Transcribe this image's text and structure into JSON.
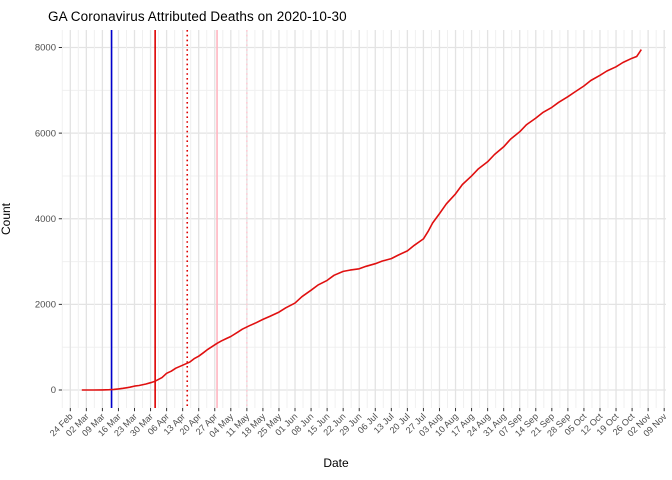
{
  "chart_data": {
    "type": "line",
    "title": "GA Coronavirus Attributed Deaths on 2020-10-30",
    "xlabel": "Date",
    "ylabel": "Count",
    "grid": true,
    "legend": "none",
    "ylim": [
      0,
      8000
    ],
    "y_ticks": [
      0,
      2000,
      4000,
      6000,
      8000
    ],
    "y_minor_step": 1000,
    "x_ticks": [
      {
        "date": "2020-02-24",
        "label": "24 Feb"
      },
      {
        "date": "2020-03-02",
        "label": "02 Mar"
      },
      {
        "date": "2020-03-09",
        "label": "09 Mar"
      },
      {
        "date": "2020-03-16",
        "label": "16 Mar"
      },
      {
        "date": "2020-03-23",
        "label": "23 Mar"
      },
      {
        "date": "2020-03-30",
        "label": "30 Mar"
      },
      {
        "date": "2020-04-06",
        "label": "06 Apr"
      },
      {
        "date": "2020-04-13",
        "label": "13 Apr"
      },
      {
        "date": "2020-04-20",
        "label": "20 Apr"
      },
      {
        "date": "2020-04-27",
        "label": "27 Apr"
      },
      {
        "date": "2020-05-04",
        "label": "04 May"
      },
      {
        "date": "2020-05-11",
        "label": "11 May"
      },
      {
        "date": "2020-05-18",
        "label": "18 May"
      },
      {
        "date": "2020-05-25",
        "label": "25 May"
      },
      {
        "date": "2020-06-01",
        "label": "01 Jun"
      },
      {
        "date": "2020-06-08",
        "label": "08 Jun"
      },
      {
        "date": "2020-06-15",
        "label": "15 Jun"
      },
      {
        "date": "2020-06-22",
        "label": "22 Jun"
      },
      {
        "date": "2020-06-29",
        "label": "29 Jun"
      },
      {
        "date": "2020-07-06",
        "label": "06 Jul"
      },
      {
        "date": "2020-07-13",
        "label": "13 Jul"
      },
      {
        "date": "2020-07-20",
        "label": "20 Jul"
      },
      {
        "date": "2020-07-27",
        "label": "27 Jul"
      },
      {
        "date": "2020-08-03",
        "label": "03 Aug"
      },
      {
        "date": "2020-08-10",
        "label": "10 Aug"
      },
      {
        "date": "2020-08-17",
        "label": "17 Aug"
      },
      {
        "date": "2020-08-24",
        "label": "24 Aug"
      },
      {
        "date": "2020-08-31",
        "label": "31 Aug"
      },
      {
        "date": "2020-09-07",
        "label": "07 Sep"
      },
      {
        "date": "2020-09-14",
        "label": "14 Sep"
      },
      {
        "date": "2020-09-21",
        "label": "21 Sep"
      },
      {
        "date": "2020-09-28",
        "label": "28 Sep"
      },
      {
        "date": "2020-10-05",
        "label": "05 Oct"
      },
      {
        "date": "2020-10-12",
        "label": "12 Oct"
      },
      {
        "date": "2020-10-19",
        "label": "19 Oct"
      },
      {
        "date": "2020-10-26",
        "label": "26 Oct"
      },
      {
        "date": "2020-11-02",
        "label": "02 Nov"
      },
      {
        "date": "2020-11-09",
        "label": "09 Nov"
      }
    ],
    "reference_lines": [
      {
        "name": "blue-solid-vline",
        "date": "2020-03-13",
        "style": "solid",
        "color": "#0000cc"
      },
      {
        "name": "red-solid-vline",
        "date": "2020-04-01",
        "style": "solid",
        "color": "#dd0000"
      },
      {
        "name": "red-dotted-vline",
        "date": "2020-04-15",
        "style": "dotted",
        "color": "#dd0000"
      },
      {
        "name": "pink-solid-vline",
        "date": "2020-04-28",
        "style": "solid",
        "color": "#ffb6c1"
      },
      {
        "name": "pink-dotted-vline",
        "date": "2020-05-11",
        "style": "dotted",
        "color": "#ffccd6"
      }
    ],
    "series": [
      {
        "name": "cumulative-deaths",
        "color": "#e01010",
        "points": [
          [
            "2020-02-29",
            0
          ],
          [
            "2020-03-05",
            0
          ],
          [
            "2020-03-09",
            3
          ],
          [
            "2020-03-12",
            8
          ],
          [
            "2020-03-14",
            15
          ],
          [
            "2020-03-16",
            26
          ],
          [
            "2020-03-18",
            40
          ],
          [
            "2020-03-21",
            65
          ],
          [
            "2020-03-23",
            90
          ],
          [
            "2020-03-25",
            105
          ],
          [
            "2020-03-28",
            140
          ],
          [
            "2020-03-30",
            170
          ],
          [
            "2020-04-01",
            205
          ],
          [
            "2020-04-04",
            290
          ],
          [
            "2020-04-06",
            390
          ],
          [
            "2020-04-08",
            440
          ],
          [
            "2020-04-10",
            510
          ],
          [
            "2020-04-13",
            580
          ],
          [
            "2020-04-16",
            650
          ],
          [
            "2020-04-18",
            730
          ],
          [
            "2020-04-20",
            790
          ],
          [
            "2020-04-22",
            870
          ],
          [
            "2020-04-24",
            950
          ],
          [
            "2020-04-26",
            1020
          ],
          [
            "2020-04-28",
            1090
          ],
          [
            "2020-04-30",
            1150
          ],
          [
            "2020-05-02",
            1200
          ],
          [
            "2020-05-04",
            1250
          ],
          [
            "2020-05-07",
            1350
          ],
          [
            "2020-05-09",
            1420
          ],
          [
            "2020-05-12",
            1500
          ],
          [
            "2020-05-15",
            1570
          ],
          [
            "2020-05-18",
            1650
          ],
          [
            "2020-05-21",
            1720
          ],
          [
            "2020-05-25",
            1820
          ],
          [
            "2020-05-28",
            1920
          ],
          [
            "2020-06-01",
            2030
          ],
          [
            "2020-06-04",
            2180
          ],
          [
            "2020-06-08",
            2330
          ],
          [
            "2020-06-11",
            2450
          ],
          [
            "2020-06-15",
            2560
          ],
          [
            "2020-06-18",
            2680
          ],
          [
            "2020-06-22",
            2770
          ],
          [
            "2020-06-25",
            2800
          ],
          [
            "2020-06-29",
            2830
          ],
          [
            "2020-07-02",
            2890
          ],
          [
            "2020-07-06",
            2950
          ],
          [
            "2020-07-09",
            3010
          ],
          [
            "2020-07-13",
            3070
          ],
          [
            "2020-07-16",
            3150
          ],
          [
            "2020-07-20",
            3250
          ],
          [
            "2020-07-23",
            3380
          ],
          [
            "2020-07-27",
            3530
          ],
          [
            "2020-07-29",
            3700
          ],
          [
            "2020-07-31",
            3900
          ],
          [
            "2020-08-03",
            4120
          ],
          [
            "2020-08-06",
            4350
          ],
          [
            "2020-08-10",
            4580
          ],
          [
            "2020-08-13",
            4800
          ],
          [
            "2020-08-17",
            5000
          ],
          [
            "2020-08-20",
            5170
          ],
          [
            "2020-08-24",
            5330
          ],
          [
            "2020-08-27",
            5500
          ],
          [
            "2020-08-31",
            5680
          ],
          [
            "2020-09-03",
            5860
          ],
          [
            "2020-09-07",
            6030
          ],
          [
            "2020-09-10",
            6200
          ],
          [
            "2020-09-14",
            6350
          ],
          [
            "2020-09-17",
            6480
          ],
          [
            "2020-09-21",
            6600
          ],
          [
            "2020-09-24",
            6720
          ],
          [
            "2020-09-28",
            6850
          ],
          [
            "2020-10-01",
            6960
          ],
          [
            "2020-10-05",
            7100
          ],
          [
            "2020-10-08",
            7230
          ],
          [
            "2020-10-12",
            7350
          ],
          [
            "2020-10-15",
            7450
          ],
          [
            "2020-10-19",
            7550
          ],
          [
            "2020-10-22",
            7650
          ],
          [
            "2020-10-26",
            7750
          ],
          [
            "2020-10-28",
            7790
          ],
          [
            "2020-10-29",
            7870
          ],
          [
            "2020-10-30",
            7950
          ]
        ]
      }
    ]
  }
}
